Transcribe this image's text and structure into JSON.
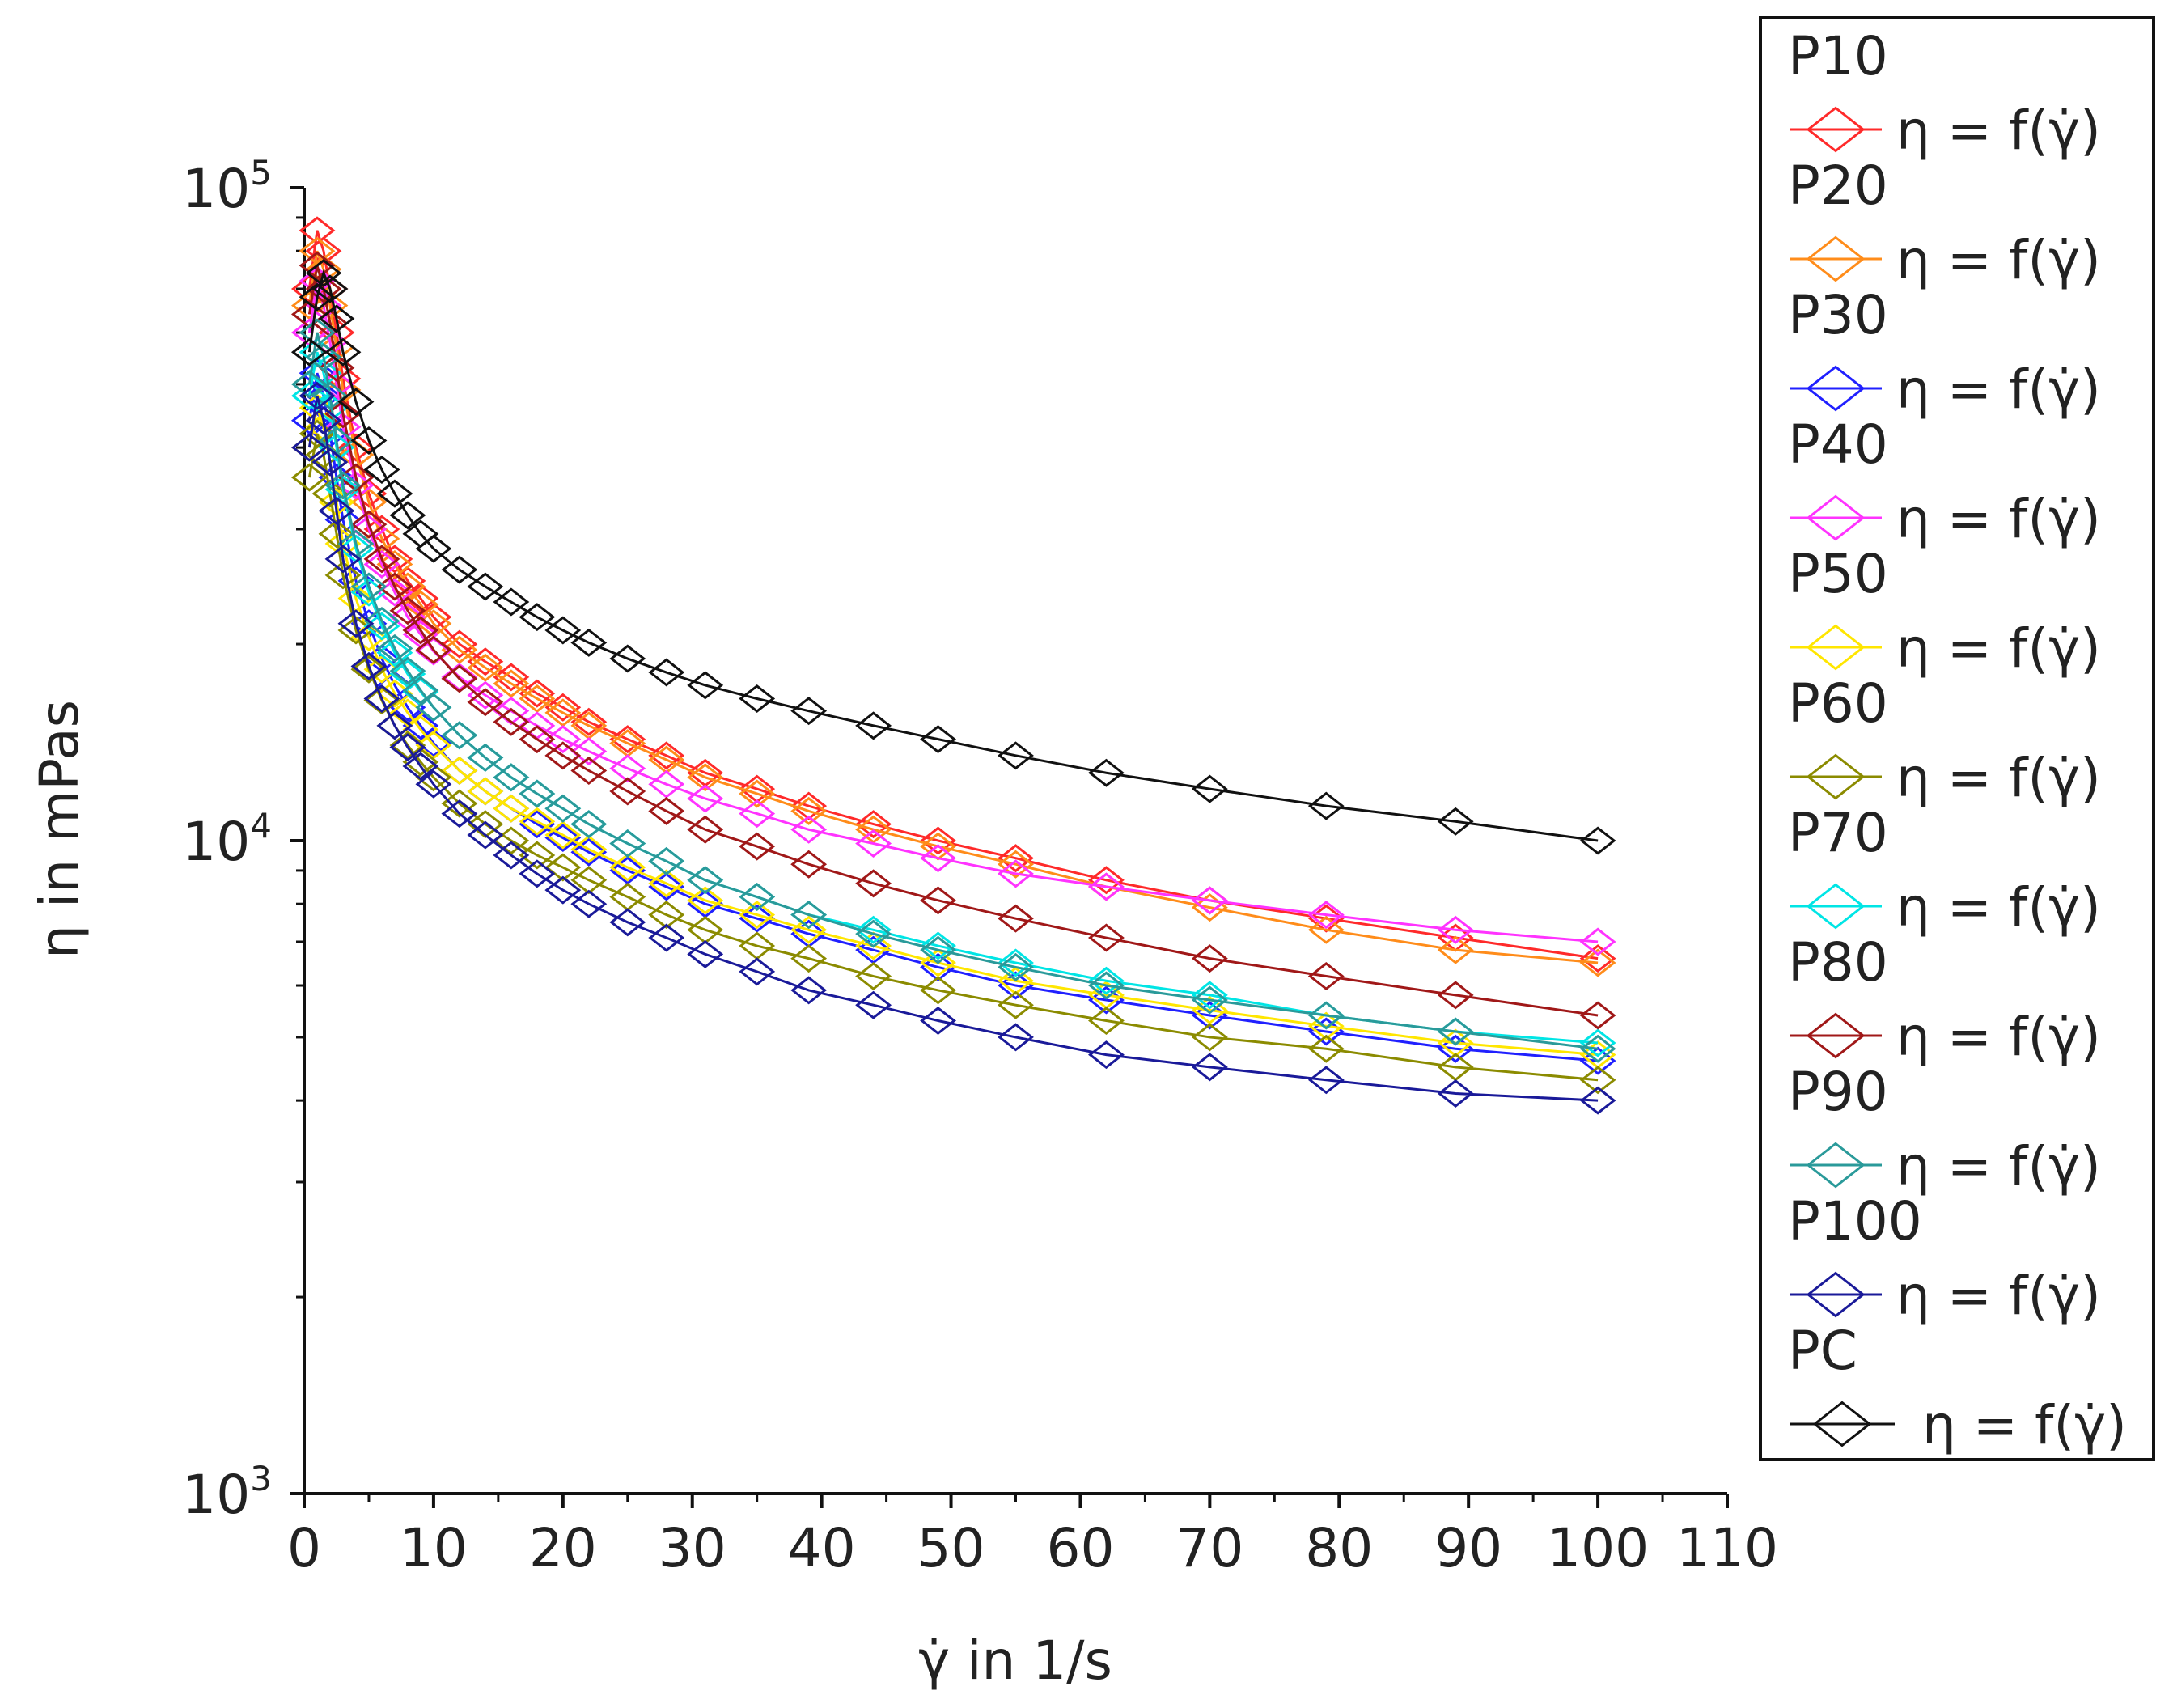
{
  "chart_data": {
    "type": "line",
    "title": "",
    "xlabel": "γ̇ in 1/s",
    "ylabel": "η in mPas",
    "xscale": "linear",
    "yscale": "log",
    "xlim": [
      0,
      110
    ],
    "ylim": [
      1000,
      100000
    ],
    "xticks": [
      "0",
      "10",
      "20",
      "30",
      "40",
      "50",
      "60",
      "70",
      "80",
      "90",
      "100",
      "110"
    ],
    "yticks": [
      {
        "base": "10",
        "exp": "3"
      },
      {
        "base": "10",
        "exp": "4"
      },
      {
        "base": "10",
        "exp": "5"
      }
    ],
    "grid": false,
    "legend_position": "right",
    "x": [
      0.4,
      1,
      1.5,
      2,
      2.5,
      3,
      4,
      5,
      6,
      7,
      8,
      9,
      10,
      12,
      14,
      16,
      18,
      20,
      22,
      25,
      28,
      31,
      35,
      39,
      44,
      49,
      55,
      62,
      70,
      79,
      89,
      100
    ],
    "series": [
      {
        "group": "P10",
        "name": "η = f(γ̇)",
        "color": "#ff2a2a",
        "values": [
          70000,
          86000,
          80000,
          70000,
          60000,
          51000,
          40000,
          34000,
          30000,
          27000,
          25000,
          23500,
          22000,
          20000,
          18800,
          17800,
          16800,
          16000,
          15200,
          14300,
          13500,
          12700,
          12000,
          11300,
          10600,
          10000,
          9400,
          8700,
          8100,
          7600,
          7100,
          6600
        ]
      },
      {
        "group": "P20",
        "name": "η = f(γ̇)",
        "color": "#ff8c1a",
        "values": [
          66000,
          80000,
          75000,
          66000,
          57000,
          49000,
          39000,
          33000,
          29000,
          26500,
          24500,
          23000,
          21500,
          19600,
          18400,
          17400,
          16500,
          15700,
          15000,
          14100,
          13300,
          12500,
          11800,
          11100,
          10400,
          9800,
          9200,
          8500,
          7900,
          7300,
          6800,
          6500
        ]
      },
      {
        "group": "P30",
        "name": "η = f(γ̇)",
        "color": "#2020ff",
        "values": [
          44000,
          52000,
          48000,
          42000,
          36000,
          31000,
          25000,
          21500,
          19000,
          17300,
          16000,
          15000,
          14100,
          12800,
          11900,
          11200,
          10600,
          10100,
          9600,
          9000,
          8500,
          8000,
          7600,
          7200,
          6800,
          6400,
          6000,
          5700,
          5400,
          5100,
          4800,
          4600
        ]
      },
      {
        "group": "P40",
        "name": "η = f(γ̇)",
        "color": "#ff33ff",
        "values": [
          60000,
          72000,
          66000,
          58000,
          50000,
          43000,
          35000,
          30000,
          26500,
          24000,
          22000,
          20700,
          19500,
          17800,
          16700,
          15800,
          15000,
          14300,
          13700,
          12900,
          12200,
          11600,
          11000,
          10400,
          9900,
          9400,
          8900,
          8500,
          8100,
          7700,
          7300,
          7000
        ]
      },
      {
        "group": "P50",
        "name": "η = f(γ̇)",
        "color": "#ffe600",
        "values": [
          40000,
          46000,
          43000,
          38000,
          33000,
          28500,
          23500,
          20500,
          18300,
          16800,
          15700,
          14800,
          14000,
          12800,
          11900,
          11200,
          10700,
          10200,
          9700,
          9100,
          8600,
          8100,
          7700,
          7300,
          6900,
          6500,
          6100,
          5800,
          5500,
          5200,
          4900,
          4700
        ]
      },
      {
        "group": "P60",
        "name": "η = f(γ̇)",
        "color": "#8b8b00",
        "values": [
          36000,
          42000,
          39000,
          34000,
          29500,
          25500,
          21000,
          18300,
          16400,
          15000,
          14000,
          13200,
          12500,
          11400,
          10600,
          10000,
          9500,
          9100,
          8700,
          8200,
          7700,
          7300,
          6900,
          6600,
          6200,
          5900,
          5600,
          5300,
          5000,
          4800,
          4500,
          4300
        ]
      },
      {
        "group": "P70",
        "name": "η = f(γ̇)",
        "color": "#00e5e5",
        "values": [
          48000,
          56000,
          52000,
          46000,
          40000,
          34500,
          28000,
          24000,
          21300,
          19400,
          18000,
          16900,
          16000,
          14500,
          13400,
          12500,
          11800,
          11200,
          10600,
          9900,
          9300,
          8700,
          8200,
          7700,
          7300,
          6900,
          6500,
          6100,
          5800,
          5400,
          5100,
          4900
        ]
      },
      {
        "group": "P80",
        "name": "η = f(γ̇)",
        "color": "#a01818",
        "values": [
          64000,
          76000,
          70000,
          62000,
          53000,
          45000,
          36000,
          30500,
          27000,
          24500,
          22500,
          21000,
          19600,
          17700,
          16300,
          15200,
          14300,
          13500,
          12800,
          11900,
          11100,
          10400,
          9800,
          9200,
          8600,
          8100,
          7600,
          7100,
          6600,
          6200,
          5800,
          5400
        ]
      },
      {
        "group": "P90",
        "name": "η = f(γ̇)",
        "color": "#2a9a9a",
        "values": [
          50000,
          60000,
          55000,
          48000,
          41000,
          35000,
          28500,
          24500,
          21700,
          19700,
          18200,
          17000,
          16000,
          14500,
          13400,
          12500,
          11800,
          11200,
          10600,
          9900,
          9300,
          8700,
          8200,
          7700,
          7200,
          6800,
          6400,
          6000,
          5700,
          5400,
          5100,
          4800
        ]
      },
      {
        "group": "P100",
        "name": "η = f(γ̇)",
        "color": "#1a1a99",
        "values": [
          40000,
          48000,
          44000,
          38000,
          32000,
          27000,
          21500,
          18500,
          16500,
          15000,
          13900,
          13000,
          12200,
          11000,
          10200,
          9500,
          8900,
          8400,
          8000,
          7500,
          7100,
          6700,
          6300,
          5900,
          5600,
          5300,
          5000,
          4700,
          4500,
          4300,
          4100,
          4000
        ]
      },
      {
        "group": "PC",
        "name": "η = f(γ̇)",
        "color": "#111111",
        "values": [
          56000,
          68000,
          74000,
          70000,
          63000,
          56000,
          47000,
          41000,
          37000,
          34000,
          31500,
          29500,
          28000,
          26000,
          24500,
          23200,
          22000,
          21000,
          20100,
          19000,
          18100,
          17300,
          16500,
          15800,
          15000,
          14300,
          13500,
          12700,
          12000,
          11300,
          10700,
          10000
        ]
      }
    ]
  }
}
